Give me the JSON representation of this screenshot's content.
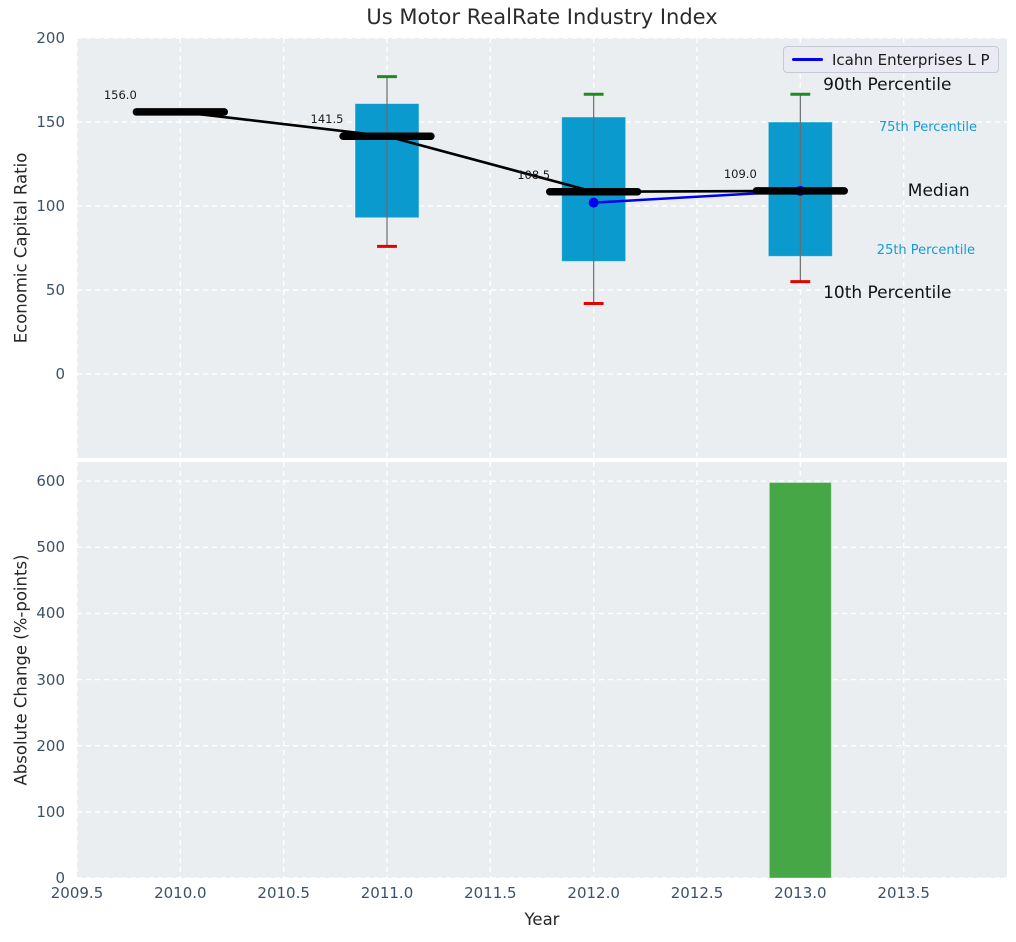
{
  "title": "Us Motor RealRate Industry Index",
  "legend": {
    "label": "Icahn Enterprises L P"
  },
  "colors": {
    "axes_bg": "#eaeef0",
    "grid": "#ffffff",
    "box": "#0a9acd",
    "p90_cap": "#1f8a1f",
    "p10_cap": "#e60000",
    "median": "#000000",
    "company_line": "#0000ee",
    "bar": "#3da23d",
    "tick_label": "#3d5166",
    "axis_label": "#262626",
    "annotation_major": "#111111",
    "percentile_label": "#159bd5",
    "title_text": "#2b2b2b"
  },
  "chart_data": [
    {
      "type": "boxplot+line",
      "title": "Us Motor RealRate Industry Index",
      "ylabel": "Economic Capital Ratio",
      "xlabel": "",
      "xlim": [
        2009.5,
        2014.0
      ],
      "ylim": [
        -50,
        200
      ],
      "grid": true,
      "yticks": [
        {
          "v": 200,
          "label": "200"
        },
        {
          "v": 150,
          "label": "150"
        },
        {
          "v": 100,
          "label": "100"
        },
        {
          "v": 50,
          "label": "50"
        },
        {
          "v": 0,
          "label": "0"
        }
      ],
      "box_half_width": 0.155,
      "median_half_width": 0.2125,
      "cap_half_width": 0.048,
      "boxes": [
        {
          "x": 2010,
          "median": 156.0,
          "median_label": "156.0"
        },
        {
          "x": 2011,
          "p90": 177,
          "p75": 161,
          "median": 141.5,
          "p25": 93,
          "p10": 76,
          "median_label": "141.5"
        },
        {
          "x": 2012,
          "p90": 166.5,
          "p75": 153,
          "median": 108.5,
          "p25": 67,
          "p10": 42,
          "median_label": "108.5"
        },
        {
          "x": 2013,
          "p90": 166.5,
          "p75": 150,
          "median": 109.0,
          "p25": 70,
          "p10": 55,
          "median_label": "109.0"
        }
      ],
      "series": [
        {
          "name": "Icahn Enterprises L P",
          "points": [
            {
              "x": 2012,
              "y": 102
            },
            {
              "x": 2013,
              "y": 109
            }
          ]
        }
      ],
      "annotations": [
        {
          "text": "90th Percentile",
          "x": 2013.11,
          "y": 172,
          "style": "major"
        },
        {
          "text": "75th Percentile",
          "x": 2013.38,
          "y": 146.5,
          "style": "minor"
        },
        {
          "text": "Median",
          "x": 2013.52,
          "y": 108.7,
          "style": "major"
        },
        {
          "text": "25th Percentile",
          "x": 2013.37,
          "y": 73.5,
          "style": "minor"
        },
        {
          "text": "10th Percentile",
          "x": 2013.11,
          "y": 48.5,
          "style": "major"
        }
      ],
      "legend_position": "upper right"
    },
    {
      "type": "bar",
      "ylabel": "Absolute Change (%-points)",
      "xlabel": "Year",
      "xlim": [
        2009.5,
        2014.0
      ],
      "ylim": [
        0,
        629
      ],
      "grid": true,
      "yticks": [
        {
          "v": 600,
          "label": "600"
        },
        {
          "v": 500,
          "label": "500"
        },
        {
          "v": 400,
          "label": "400"
        },
        {
          "v": 300,
          "label": "300"
        },
        {
          "v": 200,
          "label": "200"
        },
        {
          "v": 100,
          "label": "100"
        },
        {
          "v": 0,
          "label": "0"
        }
      ],
      "xticks": [
        {
          "v": 2009.5,
          "label": "2009.5"
        },
        {
          "v": 2010.0,
          "label": "2010.0"
        },
        {
          "v": 2010.5,
          "label": "2010.5"
        },
        {
          "v": 2011.0,
          "label": "2011.0"
        },
        {
          "v": 2011.5,
          "label": "2011.5"
        },
        {
          "v": 2012.0,
          "label": "2012.0"
        },
        {
          "v": 2012.5,
          "label": "2012.5"
        },
        {
          "v": 2013.0,
          "label": "2013.0"
        },
        {
          "v": 2013.5,
          "label": "2013.5"
        }
      ],
      "bars": [
        {
          "x": 2013,
          "value": 598,
          "width": 0.3
        }
      ]
    }
  ]
}
